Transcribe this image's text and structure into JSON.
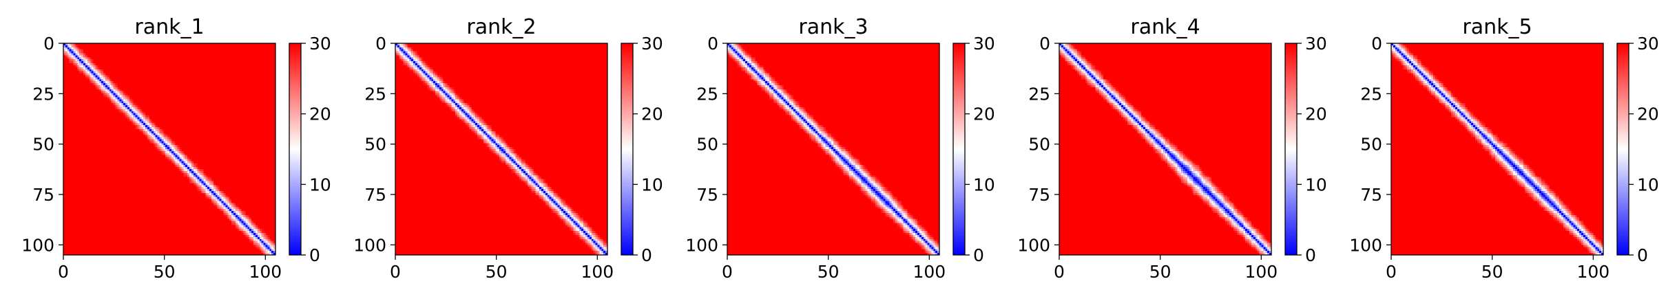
{
  "chart_data": {
    "type": "heatmap",
    "layout": "row",
    "colormap": "bwr",
    "panels": [
      {
        "title": "rank_1",
        "variant": 1
      },
      {
        "title": "rank_2",
        "variant": 2
      },
      {
        "title": "rank_3",
        "variant": 3
      },
      {
        "title": "rank_4",
        "variant": 4
      },
      {
        "title": "rank_5",
        "variant": 5
      }
    ],
    "matrix_size": 106,
    "x_ticks": [
      0,
      50,
      100
    ],
    "y_ticks": [
      0,
      25,
      50,
      75,
      100
    ],
    "x_range": [
      0,
      105
    ],
    "y_range": [
      0,
      105
    ],
    "y_inverted": true,
    "colorbar": {
      "min": 0,
      "max": 30,
      "ticks": [
        0,
        10,
        20,
        30
      ]
    },
    "value_description": "near 0 along the main diagonal, rising to ~30 (saturated) away from it",
    "colors": {
      "low": "#0000ff",
      "mid": "#ffffff",
      "high": "#ff0000"
    }
  }
}
